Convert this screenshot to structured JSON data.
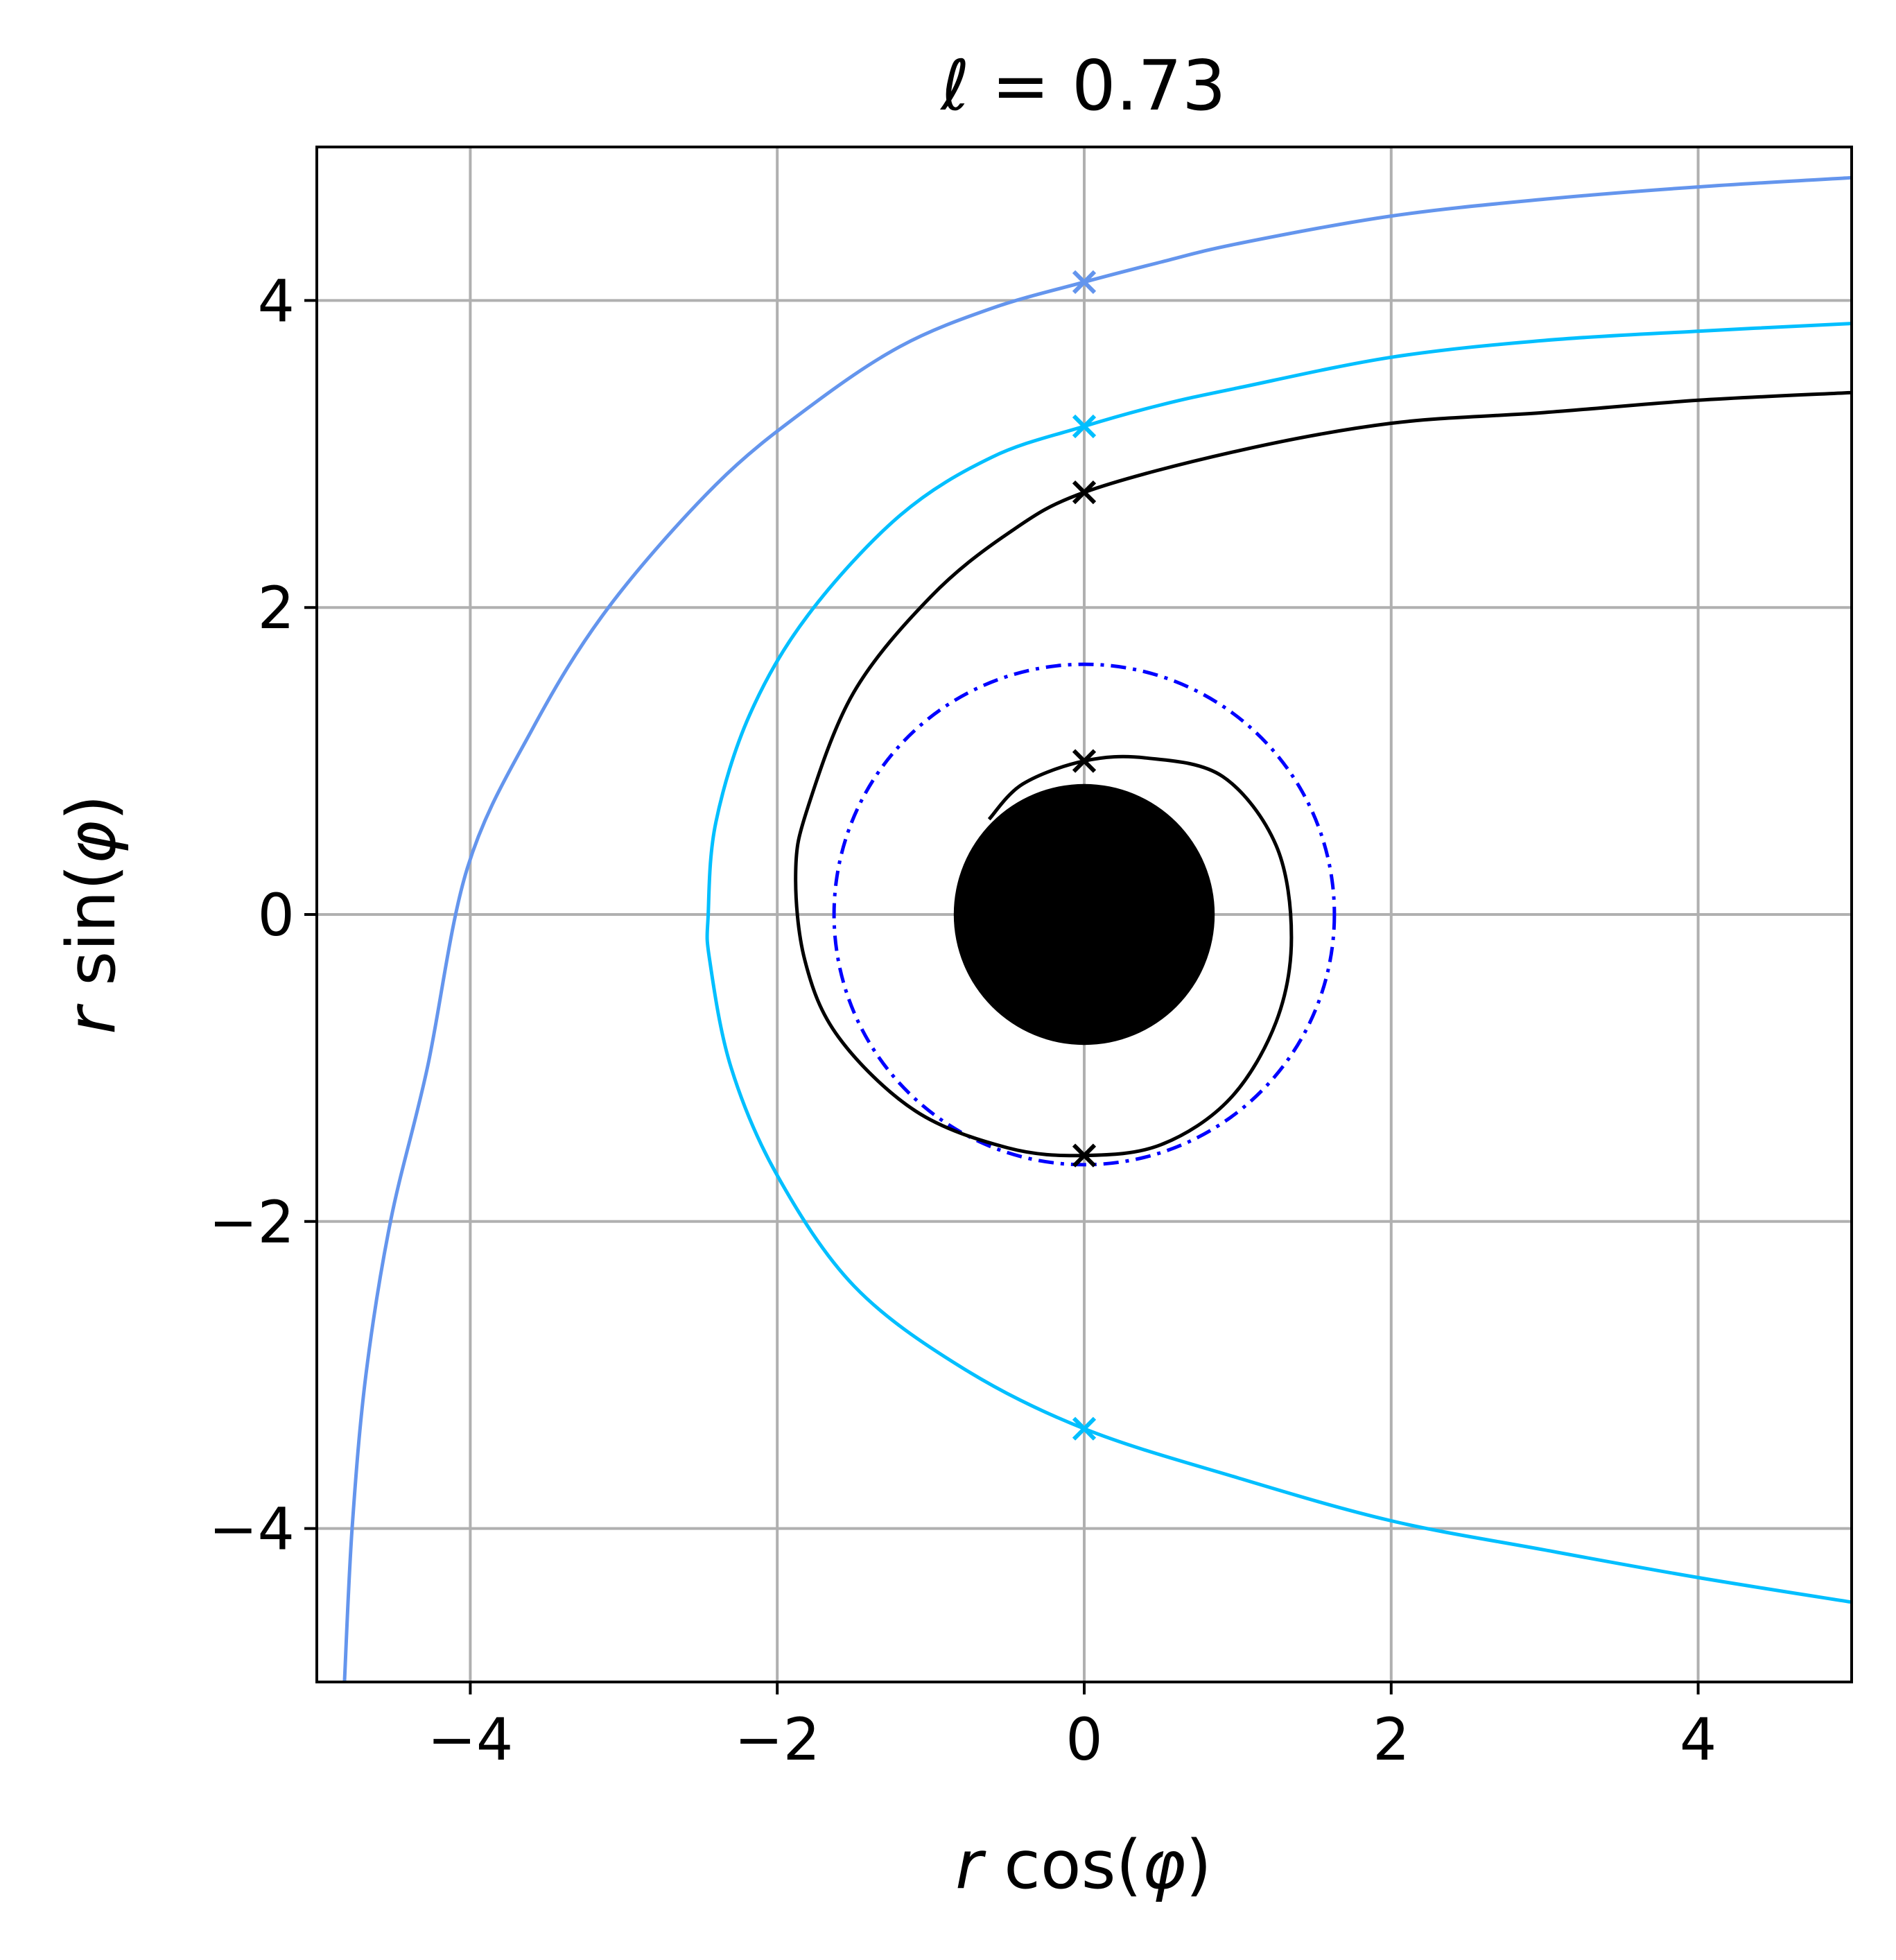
{
  "chart_data": {
    "type": "line",
    "title": "ℓ = 0.73",
    "title_symbol": "ℓ",
    "title_rest": " = 0.73",
    "xlabel_var": "r",
    "xlabel_fn": " cos(",
    "xlabel_arg": "φ",
    "xlabel_close": ")",
    "ylabel_var": "r",
    "ylabel_fn": " sin(",
    "ylabel_arg": "φ",
    "ylabel_close": ")",
    "xlim": [
      -5,
      5
    ],
    "ylim": [
      -5,
      5
    ],
    "xticks": [
      -4,
      -2,
      0,
      2,
      4
    ],
    "yticks": [
      -4,
      -2,
      0,
      2,
      4
    ],
    "xtick_labels": [
      "−4",
      "−2",
      "0",
      "2",
      "4"
    ],
    "ytick_labels": [
      "−4",
      "−2",
      "0",
      "2",
      "4"
    ],
    "grid": true,
    "aspect": "equal",
    "horizon": {
      "center": [
        0,
        0
      ],
      "radius": 0.85,
      "color": "#000000"
    },
    "photon_sphere": {
      "center": [
        0,
        0
      ],
      "radius": 1.63,
      "color": "#0000ff",
      "linestyle": "dash-dot"
    },
    "series": [
      {
        "color": "#6495ed",
        "points": [
          [
            -4.82,
            -5.0
          ],
          [
            -4.77,
            -4.0
          ],
          [
            -4.68,
            -3.0
          ],
          [
            -4.52,
            -2.0
          ],
          [
            -4.28,
            -1.0
          ],
          [
            -4.02,
            0.3
          ],
          [
            -3.6,
            1.2
          ],
          [
            -3.1,
            2.0
          ],
          [
            -2.4,
            2.8
          ],
          [
            -1.8,
            3.3
          ],
          [
            -1.2,
            3.7
          ],
          [
            -0.6,
            3.95
          ],
          [
            0.0,
            4.12
          ],
          [
            0.5,
            4.25
          ],
          [
            1.0,
            4.37
          ],
          [
            2.0,
            4.55
          ],
          [
            3.0,
            4.66
          ],
          [
            4.0,
            4.74
          ],
          [
            5.0,
            4.8
          ]
        ],
        "markers": [
          [
            0.0,
            4.12
          ]
        ]
      },
      {
        "color": "#00bfff",
        "points": [
          [
            5.0,
            -4.48
          ],
          [
            4.0,
            -4.32
          ],
          [
            3.0,
            -4.14
          ],
          [
            2.0,
            -3.95
          ],
          [
            1.0,
            -3.67
          ],
          [
            0.0,
            -3.35
          ],
          [
            -0.8,
            -2.95
          ],
          [
            -1.5,
            -2.42
          ],
          [
            -2.0,
            -1.7
          ],
          [
            -2.3,
            -1.0
          ],
          [
            -2.44,
            -0.3
          ],
          [
            -2.45,
            0.0
          ],
          [
            -2.4,
            0.6
          ],
          [
            -2.18,
            1.3
          ],
          [
            -1.8,
            1.95
          ],
          [
            -1.2,
            2.6
          ],
          [
            -0.6,
            2.98
          ],
          [
            0.0,
            3.18
          ],
          [
            0.5,
            3.32
          ],
          [
            1.0,
            3.43
          ],
          [
            2.0,
            3.63
          ],
          [
            3.0,
            3.74
          ],
          [
            4.0,
            3.8
          ],
          [
            5.0,
            3.85
          ]
        ],
        "markers": [
          [
            0.0,
            3.18
          ],
          [
            0.0,
            -3.35
          ]
        ]
      },
      {
        "color": "#000000",
        "points": [
          [
            5.0,
            3.4
          ],
          [
            4.0,
            3.35
          ],
          [
            3.0,
            3.27
          ],
          [
            2.0,
            3.2
          ],
          [
            1.0,
            3.02
          ],
          [
            0.0,
            2.75
          ],
          [
            -0.5,
            2.48
          ],
          [
            -1.0,
            2.07
          ],
          [
            -1.5,
            1.45
          ],
          [
            -1.8,
            0.7
          ],
          [
            -1.88,
            0.28
          ],
          [
            -1.82,
            -0.3
          ],
          [
            -1.6,
            -0.8
          ],
          [
            -1.1,
            -1.28
          ],
          [
            -0.5,
            -1.52
          ],
          [
            0.0,
            -1.57
          ],
          [
            0.5,
            -1.5
          ],
          [
            0.95,
            -1.2
          ],
          [
            1.25,
            -0.7
          ],
          [
            1.35,
            -0.15
          ],
          [
            1.25,
            0.45
          ],
          [
            0.9,
            0.9
          ],
          [
            0.4,
            1.02
          ],
          [
            0.0,
            1.0
          ],
          [
            -0.4,
            0.85
          ],
          [
            -0.62,
            0.62
          ]
        ],
        "markers": [
          [
            0.0,
            2.75
          ],
          [
            0.0,
            1.0
          ],
          [
            0.0,
            -1.57
          ]
        ]
      }
    ]
  }
}
